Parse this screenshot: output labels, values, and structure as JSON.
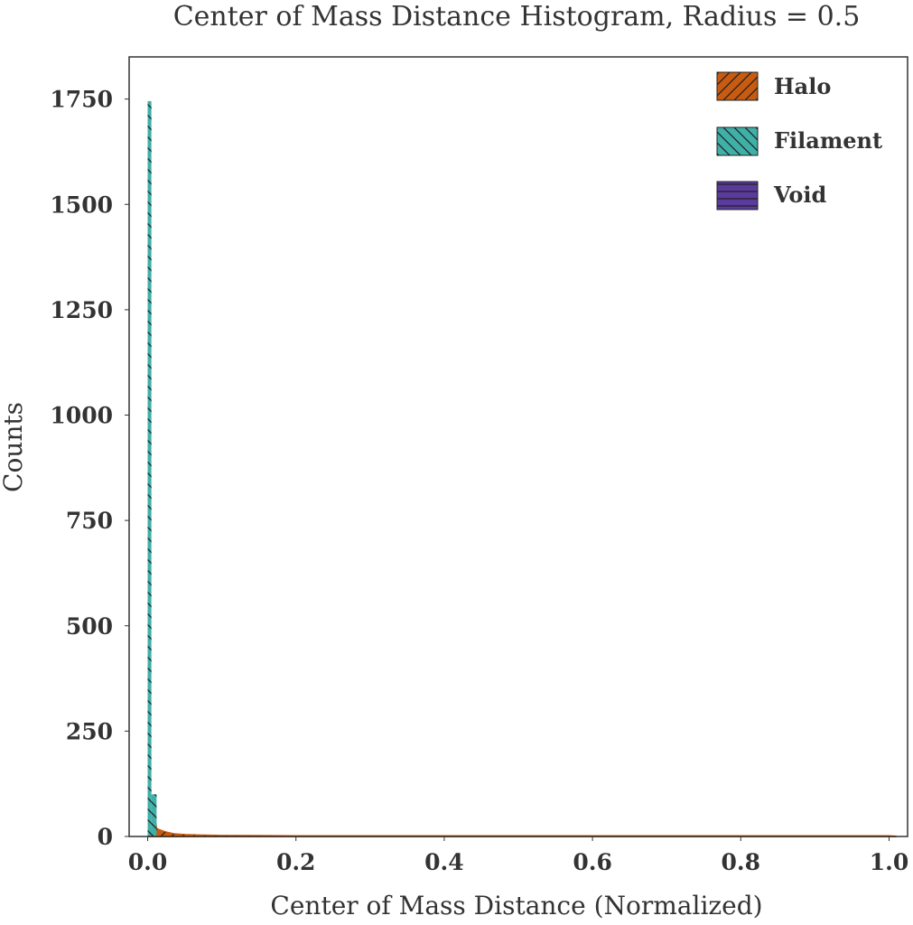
{
  "chart_data": {
    "type": "area",
    "title": "Center of Mass Distance Histogram, Radius = 0.5",
    "xlabel": "Center of Mass Distance (Normalized)",
    "ylabel": "Counts",
    "xlim": [
      -0.025,
      1.025
    ],
    "ylim": [
      0,
      1850
    ],
    "xticks": [
      0.0,
      0.2,
      0.4,
      0.6,
      0.8,
      1.0
    ],
    "xtick_labels": [
      "0.0",
      "0.2",
      "0.4",
      "0.6",
      "0.8",
      "1.0"
    ],
    "yticks": [
      0,
      250,
      500,
      750,
      1000,
      1250,
      1500,
      1750
    ],
    "ytick_labels": [
      "0",
      "250",
      "500",
      "750",
      "1000",
      "1250",
      "1500",
      "1750"
    ],
    "grid": false,
    "legend_position": "top-right",
    "series": [
      {
        "name": "Halo",
        "color": "#c85b0f",
        "hatch": "diagonal-forward",
        "x": [
          0.0,
          0.004,
          0.008,
          0.01,
          0.012,
          0.018,
          0.025,
          0.035,
          0.05,
          0.07,
          0.1,
          0.15,
          0.2,
          0.3,
          0.5,
          0.7,
          1.0,
          1.01
        ],
        "values": [
          0,
          2,
          30,
          40,
          18,
          14,
          10,
          6,
          4,
          3,
          2,
          1.5,
          1,
          1,
          1,
          1,
          1,
          0
        ]
      },
      {
        "name": "Filament",
        "color": "#3fb0a8",
        "hatch": "diagonal-back",
        "bins": [
          {
            "x0": 0.0,
            "x1": 0.005,
            "value": 1745
          },
          {
            "x0": 0.005,
            "x1": 0.012,
            "value": 100
          }
        ]
      },
      {
        "name": "Void",
        "color": "#5a3a9c",
        "hatch": "horizontal",
        "values": []
      }
    ]
  }
}
